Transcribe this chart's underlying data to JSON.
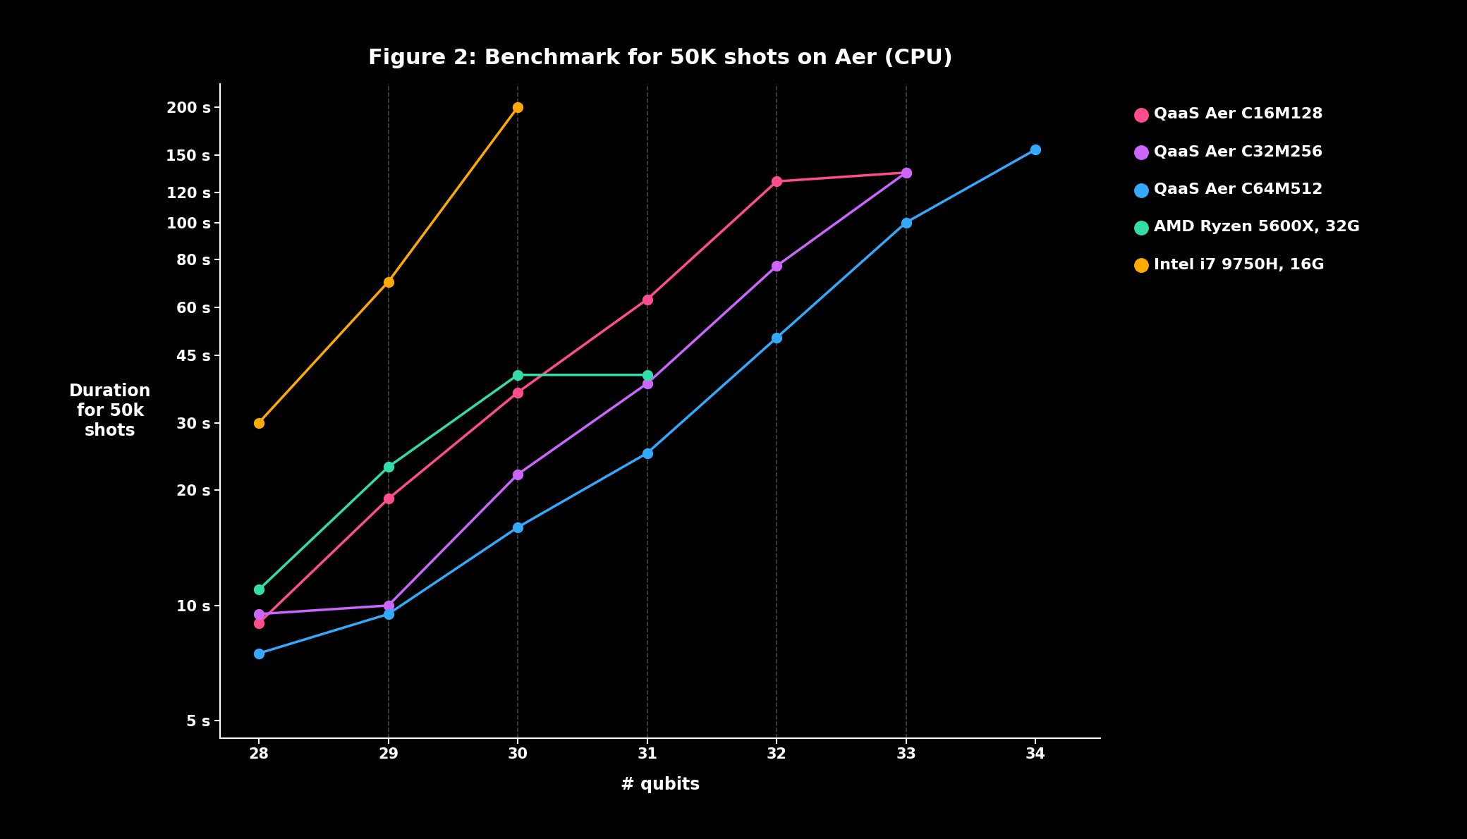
{
  "title": "Figure 2: Benchmark for 50K shots on Aer (CPU)",
  "xlabel": "# qubits",
  "ylabel": "Duration\nfor 50k\nshots",
  "background_color": "#000000",
  "text_color": "#ffffff",
  "grid_color": "#555555",
  "series": [
    {
      "label": "QaaS Aer C16M128",
      "color": "#ff4d8f",
      "x": [
        28,
        29,
        30,
        31,
        32,
        33
      ],
      "y": [
        9,
        19,
        36,
        63,
        128,
        135
      ]
    },
    {
      "label": "QaaS Aer C32M256",
      "color": "#cc66ff",
      "x": [
        28,
        29,
        30,
        31,
        32,
        33
      ],
      "y": [
        9.5,
        10,
        22,
        38,
        77,
        135
      ]
    },
    {
      "label": "QaaS Aer C64M512",
      "color": "#33aaff",
      "x": [
        28,
        29,
        30,
        31,
        32,
        33,
        34
      ],
      "y": [
        7.5,
        9.5,
        16,
        25,
        50,
        100,
        155
      ]
    },
    {
      "label": "AMD Ryzen 5600X, 32G",
      "color": "#33ddaa",
      "x": [
        28,
        29,
        30,
        31
      ],
      "y": [
        11,
        23,
        40,
        40
      ]
    },
    {
      "label": "Intel i7 9750H, 16G",
      "color": "#ffaa00",
      "x": [
        28,
        29,
        30
      ],
      "y": [
        30,
        70,
        200
      ]
    }
  ],
  "yticks": [
    5,
    10,
    20,
    30,
    45,
    60,
    80,
    100,
    120,
    150,
    200
  ],
  "ytick_labels": [
    "5 s",
    "10 s",
    "20 s",
    "30 s",
    "45 s",
    "60 s",
    "80 s",
    "100 s",
    "120 s",
    "150 s",
    "200 s"
  ],
  "xticks": [
    28,
    29,
    30,
    31,
    32,
    33,
    34
  ],
  "xlim": [
    27.7,
    34.5
  ],
  "ylim_log": [
    4.5,
    230
  ],
  "title_fontsize": 22,
  "axis_label_fontsize": 17,
  "tick_fontsize": 15,
  "legend_fontsize": 16,
  "marker_size": 10,
  "line_width": 2.5,
  "vgrid_lines": [
    29,
    30,
    31,
    32,
    33
  ]
}
